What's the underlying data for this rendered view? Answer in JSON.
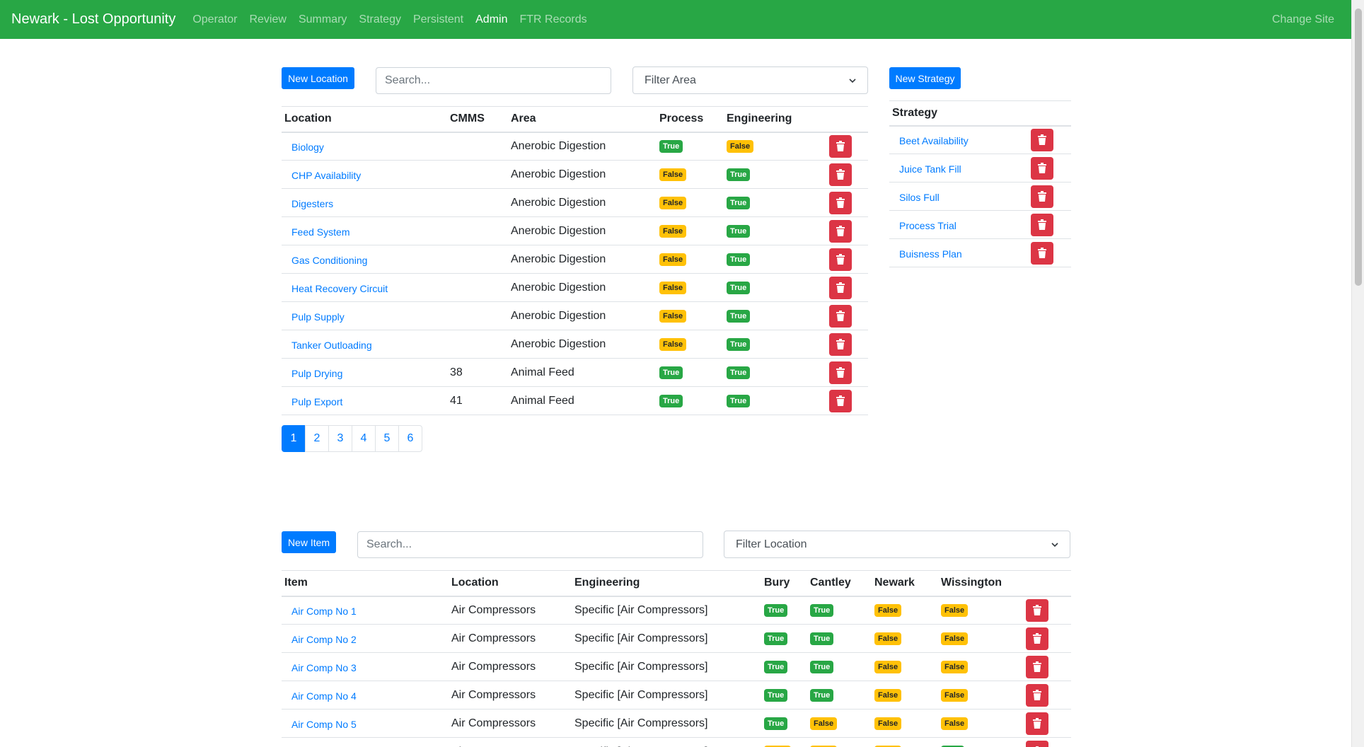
{
  "navbar": {
    "brand": "Newark - Lost Opportunity",
    "links": [
      "Operator",
      "Review",
      "Summary",
      "Strategy",
      "Persistent",
      "Admin",
      "FTR Records"
    ],
    "active": "Admin",
    "right": "Change Site",
    "color": "#28a745"
  },
  "locations": {
    "new_button": "New Location",
    "search_placeholder": "Search...",
    "filter_label": "Filter Area",
    "headers": [
      "Location",
      "CMMS",
      "Area",
      "Process",
      "Engineering"
    ],
    "rows": [
      {
        "location": "Biology",
        "cmms": "",
        "area": "Anerobic Digestion",
        "process": "True",
        "engineering": "False"
      },
      {
        "location": "CHP Availability",
        "cmms": "",
        "area": "Anerobic Digestion",
        "process": "False",
        "engineering": "True"
      },
      {
        "location": "Digesters",
        "cmms": "",
        "area": "Anerobic Digestion",
        "process": "False",
        "engineering": "True"
      },
      {
        "location": "Feed System",
        "cmms": "",
        "area": "Anerobic Digestion",
        "process": "False",
        "engineering": "True"
      },
      {
        "location": "Gas Conditioning",
        "cmms": "",
        "area": "Anerobic Digestion",
        "process": "False",
        "engineering": "True"
      },
      {
        "location": "Heat Recovery Circuit",
        "cmms": "",
        "area": "Anerobic Digestion",
        "process": "False",
        "engineering": "True"
      },
      {
        "location": "Pulp Supply",
        "cmms": "",
        "area": "Anerobic Digestion",
        "process": "False",
        "engineering": "True"
      },
      {
        "location": "Tanker Outloading",
        "cmms": "",
        "area": "Anerobic Digestion",
        "process": "False",
        "engineering": "True"
      },
      {
        "location": "Pulp Drying",
        "cmms": "38",
        "area": "Animal Feed",
        "process": "True",
        "engineering": "True"
      },
      {
        "location": "Pulp Export",
        "cmms": "41",
        "area": "Animal Feed",
        "process": "True",
        "engineering": "True"
      }
    ],
    "pages": [
      "1",
      "2",
      "3",
      "4",
      "5",
      "6"
    ],
    "active_page": "1"
  },
  "strategy": {
    "new_button": "New Strategy",
    "header": "Strategy",
    "rows": [
      "Beet Availability",
      "Juice Tank Fill",
      "Silos Full",
      "Process Trial",
      "Buisness Plan"
    ]
  },
  "items": {
    "new_button": "New Item",
    "search_placeholder": "Search...",
    "filter_label": "Filter Location",
    "headers": [
      "Item",
      "Location",
      "Engineering",
      "Bury",
      "Cantley",
      "Newark",
      "Wissington"
    ],
    "rows": [
      {
        "item": "Air Comp No 1",
        "location": "Air Compressors",
        "engineering": "Specific [Air Compressors]",
        "bury": "True",
        "cantley": "True",
        "newark": "False",
        "wissington": "False"
      },
      {
        "item": "Air Comp No 2",
        "location": "Air Compressors",
        "engineering": "Specific [Air Compressors]",
        "bury": "True",
        "cantley": "True",
        "newark": "False",
        "wissington": "False"
      },
      {
        "item": "Air Comp No 3",
        "location": "Air Compressors",
        "engineering": "Specific [Air Compressors]",
        "bury": "True",
        "cantley": "True",
        "newark": "False",
        "wissington": "False"
      },
      {
        "item": "Air Comp No 4",
        "location": "Air Compressors",
        "engineering": "Specific [Air Compressors]",
        "bury": "True",
        "cantley": "True",
        "newark": "False",
        "wissington": "False"
      },
      {
        "item": "Air Comp No 5",
        "location": "Air Compressors",
        "engineering": "Specific [Air Compressors]",
        "bury": "True",
        "cantley": "False",
        "newark": "False",
        "wissington": "False"
      },
      {
        "item": "Boot House Air Comp",
        "location": "Air Compressors",
        "engineering": "Specific [Air Compressors]",
        "bury": "False",
        "cantley": "False",
        "newark": "False",
        "wissington": "True"
      }
    ]
  },
  "colors": {
    "true": "#28a745",
    "false": "#ffc107",
    "danger": "#dc3545",
    "primary": "#007bff"
  }
}
